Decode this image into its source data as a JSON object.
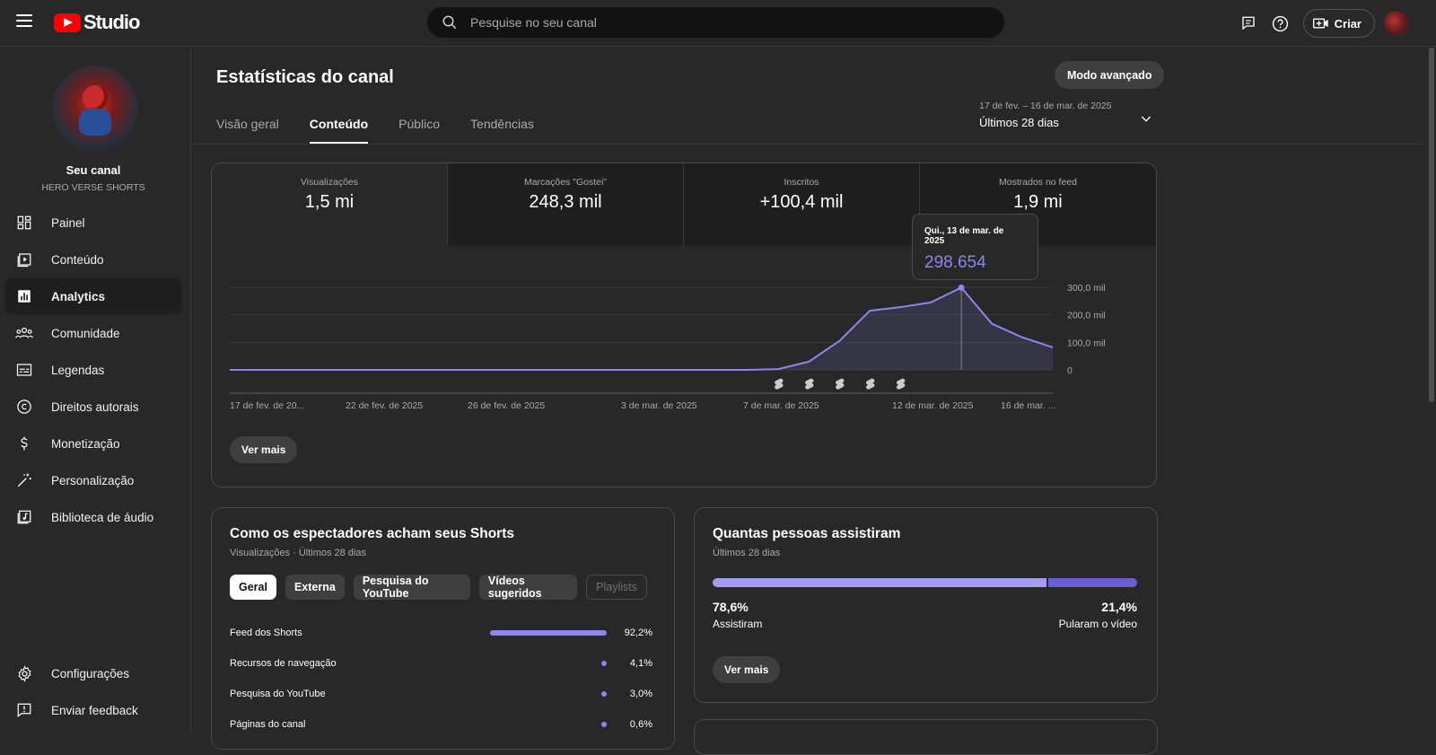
{
  "header": {
    "logo_text": "Studio",
    "search_placeholder": "Pesquise no seu canal",
    "create_label": "Criar"
  },
  "sidebar": {
    "channel_title": "Seu canal",
    "channel_name": "HERO VERSE SHORTS",
    "items": [
      {
        "label": "Painel",
        "icon": "dashboard-icon"
      },
      {
        "label": "Conteúdo",
        "icon": "content-icon"
      },
      {
        "label": "Analytics",
        "icon": "analytics-icon",
        "active": true
      },
      {
        "label": "Comunidade",
        "icon": "community-icon"
      },
      {
        "label": "Legendas",
        "icon": "subtitles-icon"
      },
      {
        "label": "Direitos autorais",
        "icon": "copyright-icon"
      },
      {
        "label": "Monetização",
        "icon": "dollar-icon"
      },
      {
        "label": "Personalização",
        "icon": "magic-wand-icon"
      },
      {
        "label": "Biblioteca de áudio",
        "icon": "audio-library-icon"
      }
    ],
    "bottom_items": [
      {
        "label": "Configurações",
        "icon": "gear-icon"
      },
      {
        "label": "Enviar feedback",
        "icon": "feedback-icon"
      }
    ]
  },
  "main": {
    "title": "Estatísticas do canal",
    "advanced_mode": "Modo avançado",
    "tabs": [
      "Visão geral",
      "Conteúdo",
      "Público",
      "Tendências"
    ],
    "active_tab": "Conteúdo",
    "date_range": {
      "dates": "17 de fev. – 16 de mar. de 2025",
      "label": "Últimos 28 dias"
    }
  },
  "metrics": [
    {
      "label": "Visualizações",
      "value": "1,5 mi"
    },
    {
      "label": "Marcações \"Gostei\"",
      "value": "248,3 mil"
    },
    {
      "label": "Inscritos",
      "value": "+100,4 mil"
    },
    {
      "label": "Mostrados no feed",
      "value": "1,9 mi"
    }
  ],
  "tooltip": {
    "date": "Qui., 13 de mar. de 2025",
    "value": "298.654"
  },
  "chart_data": {
    "type": "area",
    "x_labels": [
      "17 de fev. de 20...",
      "22 de fev. de 2025",
      "26 de fev. de 2025",
      "3 de mar. de 2025",
      "7 de mar. de 2025",
      "12 de mar. de 2025",
      "16 de mar. ..."
    ],
    "y_ticks": [
      "300,0 mil",
      "200,0 mil",
      "100,0 mil",
      "0"
    ],
    "ylim": [
      0,
      300000
    ],
    "x": [
      "17/02",
      "18/02",
      "19/02",
      "20/02",
      "21/02",
      "22/02",
      "23/02",
      "24/02",
      "25/02",
      "26/02",
      "27/02",
      "28/02",
      "01/03",
      "02/03",
      "03/03",
      "04/03",
      "05/03",
      "06/03",
      "07/03",
      "08/03",
      "09/03",
      "10/03",
      "11/03",
      "12/03",
      "13/03",
      "14/03",
      "15/03",
      "16/03"
    ],
    "values": [
      0,
      0,
      0,
      0,
      0,
      0,
      0,
      0,
      0,
      0,
      0,
      0,
      0,
      0,
      0,
      0,
      0,
      0,
      3000,
      30000,
      105000,
      215000,
      228000,
      245000,
      298654,
      168000,
      118000,
      82000
    ],
    "color": "#8f84f0",
    "highlight": "13/03",
    "short_markers_at": [
      "07/03",
      "08/03",
      "09/03",
      "10/03",
      "11/03"
    ]
  },
  "ver_mais": "Ver mais",
  "sources": {
    "title": "Como os espectadores acham seus Shorts",
    "subtitle": "Visualizações · Últimos 28 dias",
    "chips": [
      "Geral",
      "Externa",
      "Pesquisa do YouTube",
      "Vídeos sugeridos",
      "Playlists"
    ],
    "rows": [
      {
        "name": "Feed dos Shorts",
        "pct": "92,2%",
        "value": 92.2
      },
      {
        "name": "Recursos de navegação",
        "pct": "4,1%",
        "value": 4.1
      },
      {
        "name": "Pesquisa do YouTube",
        "pct": "3,0%",
        "value": 3.0
      },
      {
        "name": "Páginas do canal",
        "pct": "0,6%",
        "value": 0.6
      }
    ]
  },
  "views": {
    "title": "Quantas pessoas assistiram",
    "subtitle": "Últimos 28 dias",
    "watched_pct": "78,6%",
    "watched_label": "Assistiram",
    "skipped_pct": "21,4%",
    "skipped_label": "Pularam o vídeo",
    "watched_value": 78.6
  }
}
